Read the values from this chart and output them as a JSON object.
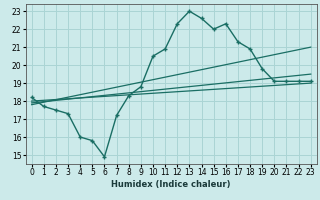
{
  "xlabel": "Humidex (Indice chaleur)",
  "ylabel": "",
  "bg_color": "#cceaea",
  "line_color": "#1a6e64",
  "grid_color": "#aad4d4",
  "xlim": [
    -0.5,
    23.5
  ],
  "ylim": [
    14.5,
    23.4
  ],
  "yticks": [
    15,
    16,
    17,
    18,
    19,
    20,
    21,
    22,
    23
  ],
  "xticks": [
    0,
    1,
    2,
    3,
    4,
    5,
    6,
    7,
    8,
    9,
    10,
    11,
    12,
    13,
    14,
    15,
    16,
    17,
    18,
    19,
    20,
    21,
    22,
    23
  ],
  "main_x": [
    0,
    1,
    2,
    3,
    4,
    5,
    6,
    7,
    8,
    9,
    10,
    11,
    12,
    13,
    14,
    15,
    16,
    17,
    18,
    19,
    20,
    21,
    22,
    23
  ],
  "main_y": [
    18.2,
    17.7,
    17.5,
    17.3,
    16.0,
    15.8,
    14.9,
    17.2,
    18.3,
    18.8,
    20.5,
    20.9,
    22.3,
    23.0,
    22.6,
    22.0,
    22.3,
    21.3,
    20.9,
    19.8,
    19.1,
    19.1,
    19.1,
    19.1
  ],
  "trend1_x": [
    0,
    23
  ],
  "trend1_y": [
    18.0,
    19.0
  ],
  "trend2_x": [
    0,
    23
  ],
  "trend2_y": [
    17.9,
    19.5
  ],
  "trend3_x": [
    0,
    23
  ],
  "trend3_y": [
    17.8,
    21.0
  ]
}
